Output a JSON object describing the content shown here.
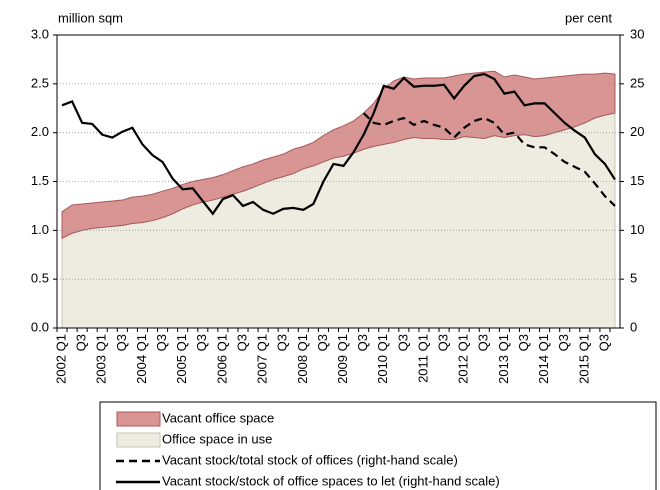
{
  "chart_data": {
    "type": "stacked_area_line",
    "y_label": "million sqm",
    "y2_label": "per cent",
    "categories": [
      "2002 Q1",
      null,
      "Q3",
      null,
      "2003 Q1",
      null,
      "Q3",
      null,
      "2004 Q1",
      null,
      "Q3",
      null,
      "2005 Q1",
      null,
      "Q3",
      null,
      "2006 Q1",
      null,
      "Q3",
      null,
      "2007 Q1",
      null,
      "Q3",
      null,
      "2008 Q1",
      null,
      "Q3",
      null,
      "2009 Q1",
      null,
      "Q3",
      null,
      "2010 Q1",
      null,
      "Q3",
      null,
      "2011 Q1",
      null,
      "Q3",
      null,
      "2012 Q1",
      null,
      "Q3",
      null,
      "2013 Q1",
      null,
      "Q3",
      null,
      "2014 Q1",
      null,
      "Q3",
      null,
      "2015 Q1",
      null,
      "Q3",
      null
    ],
    "series": [
      {
        "name": "Vacant office space",
        "kind": "area",
        "color": "#d99594",
        "stroke": "#a65a5a",
        "values": [
          0.27,
          0.29,
          0.27,
          0.26,
          0.26,
          0.26,
          0.26,
          0.27,
          0.27,
          0.27,
          0.27,
          0.26,
          0.25,
          0.24,
          0.23,
          0.23,
          0.23,
          0.24,
          0.25,
          0.24,
          0.24,
          0.23,
          0.23,
          0.25,
          0.23,
          0.24,
          0.27,
          0.29,
          0.31,
          0.33,
          0.37,
          0.44,
          0.57,
          0.63,
          0.64,
          0.6,
          0.62,
          0.62,
          0.63,
          0.65,
          0.64,
          0.66,
          0.68,
          0.66,
          0.62,
          0.62,
          0.59,
          0.59,
          0.59,
          0.57,
          0.55,
          0.53,
          0.5,
          0.45,
          0.43,
          0.4
        ]
      },
      {
        "name": "Office space in use",
        "kind": "area",
        "color": "#eeebe0",
        "stroke": "#c9c4b2",
        "values": [
          0.92,
          0.97,
          1.0,
          1.02,
          1.03,
          1.04,
          1.05,
          1.07,
          1.08,
          1.1,
          1.13,
          1.17,
          1.22,
          1.26,
          1.29,
          1.31,
          1.34,
          1.37,
          1.4,
          1.44,
          1.48,
          1.52,
          1.55,
          1.58,
          1.63,
          1.66,
          1.7,
          1.74,
          1.76,
          1.79,
          1.83,
          1.86,
          1.88,
          1.9,
          1.93,
          1.95,
          1.94,
          1.94,
          1.93,
          1.93,
          1.96,
          1.95,
          1.94,
          1.97,
          1.95,
          1.97,
          1.98,
          1.96,
          1.97,
          2.0,
          2.03,
          2.06,
          2.1,
          2.15,
          2.18,
          2.2
        ]
      },
      {
        "name": "Vacant stock/total stock of offices (right-hand scale)",
        "kind": "line",
        "dash": true,
        "axis": "y2",
        "color": "#000000",
        "values": [
          null,
          null,
          null,
          null,
          null,
          null,
          null,
          null,
          null,
          null,
          null,
          null,
          null,
          null,
          null,
          null,
          null,
          null,
          null,
          null,
          null,
          null,
          null,
          null,
          null,
          null,
          null,
          null,
          null,
          null,
          22.0,
          21.0,
          20.8,
          21.2,
          21.5,
          20.8,
          21.2,
          20.8,
          20.5,
          19.5,
          20.5,
          21.2,
          21.5,
          21.0,
          19.8,
          20.0,
          18.8,
          18.5,
          18.5,
          17.8,
          17.0,
          16.5,
          16.0,
          14.8,
          13.5,
          12.5
        ]
      },
      {
        "name": "Vacant stock/stock of office spaces to let (right-hand scale)",
        "kind": "line",
        "dash": false,
        "axis": "y2",
        "color": "#000000",
        "values": [
          22.8,
          23.2,
          21.0,
          20.9,
          19.8,
          19.5,
          20.1,
          20.5,
          18.8,
          17.7,
          17.0,
          15.3,
          14.2,
          14.3,
          13.0,
          11.7,
          13.2,
          13.6,
          12.5,
          12.9,
          12.1,
          11.7,
          12.2,
          12.3,
          12.1,
          12.7,
          15.0,
          16.8,
          16.6,
          18.0,
          19.8,
          22.0,
          24.8,
          24.5,
          25.6,
          24.7,
          24.8,
          24.8,
          24.9,
          23.5,
          24.8,
          25.8,
          26.0,
          25.5,
          24.0,
          24.2,
          22.8,
          23.0,
          23.0,
          22.0,
          21.0,
          20.2,
          19.5,
          17.8,
          16.8,
          15.2
        ]
      }
    ],
    "ylim": [
      0,
      3
    ],
    "yticks": [
      {
        "value": 0,
        "label": "0.0"
      },
      0.5,
      {
        "value": 1,
        "label": "1.0"
      },
      1.5,
      {
        "value": 2,
        "label": "2.0"
      },
      2.5,
      {
        "value": 3,
        "label": "3.0"
      }
    ],
    "y2lim": [
      0,
      30
    ],
    "y2ticks": [
      0,
      5,
      10,
      15,
      20,
      25,
      30
    ],
    "grid": true,
    "legend": "bottom"
  }
}
